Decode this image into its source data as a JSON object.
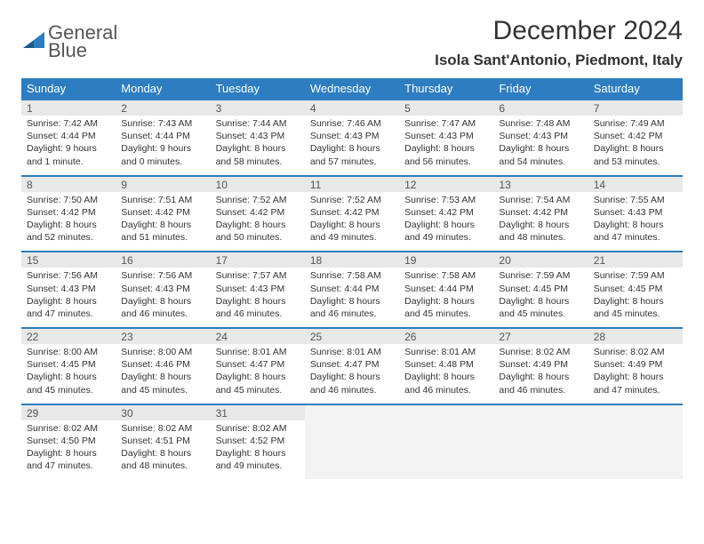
{
  "logo": {
    "line1": "General",
    "line2": "Blue"
  },
  "title": "December 2024",
  "location": "Isola Sant'Antonio, Piedmont, Italy",
  "colors": {
    "header_bg": "#2d7dc0",
    "header_text": "#ffffff",
    "daynum_bg": "#e8e8e8",
    "border": "#2d7dc0",
    "text": "#333333",
    "empty_bg": "#f3f3f3"
  },
  "daysOfWeek": [
    "Sunday",
    "Monday",
    "Tuesday",
    "Wednesday",
    "Thursday",
    "Friday",
    "Saturday"
  ],
  "weeks": [
    [
      {
        "n": "1",
        "sunrise": "Sunrise: 7:42 AM",
        "sunset": "Sunset: 4:44 PM",
        "daylight": "Daylight: 9 hours and 1 minute."
      },
      {
        "n": "2",
        "sunrise": "Sunrise: 7:43 AM",
        "sunset": "Sunset: 4:44 PM",
        "daylight": "Daylight: 9 hours and 0 minutes."
      },
      {
        "n": "3",
        "sunrise": "Sunrise: 7:44 AM",
        "sunset": "Sunset: 4:43 PM",
        "daylight": "Daylight: 8 hours and 58 minutes."
      },
      {
        "n": "4",
        "sunrise": "Sunrise: 7:46 AM",
        "sunset": "Sunset: 4:43 PM",
        "daylight": "Daylight: 8 hours and 57 minutes."
      },
      {
        "n": "5",
        "sunrise": "Sunrise: 7:47 AM",
        "sunset": "Sunset: 4:43 PM",
        "daylight": "Daylight: 8 hours and 56 minutes."
      },
      {
        "n": "6",
        "sunrise": "Sunrise: 7:48 AM",
        "sunset": "Sunset: 4:43 PM",
        "daylight": "Daylight: 8 hours and 54 minutes."
      },
      {
        "n": "7",
        "sunrise": "Sunrise: 7:49 AM",
        "sunset": "Sunset: 4:42 PM",
        "daylight": "Daylight: 8 hours and 53 minutes."
      }
    ],
    [
      {
        "n": "8",
        "sunrise": "Sunrise: 7:50 AM",
        "sunset": "Sunset: 4:42 PM",
        "daylight": "Daylight: 8 hours and 52 minutes."
      },
      {
        "n": "9",
        "sunrise": "Sunrise: 7:51 AM",
        "sunset": "Sunset: 4:42 PM",
        "daylight": "Daylight: 8 hours and 51 minutes."
      },
      {
        "n": "10",
        "sunrise": "Sunrise: 7:52 AM",
        "sunset": "Sunset: 4:42 PM",
        "daylight": "Daylight: 8 hours and 50 minutes."
      },
      {
        "n": "11",
        "sunrise": "Sunrise: 7:52 AM",
        "sunset": "Sunset: 4:42 PM",
        "daylight": "Daylight: 8 hours and 49 minutes."
      },
      {
        "n": "12",
        "sunrise": "Sunrise: 7:53 AM",
        "sunset": "Sunset: 4:42 PM",
        "daylight": "Daylight: 8 hours and 49 minutes."
      },
      {
        "n": "13",
        "sunrise": "Sunrise: 7:54 AM",
        "sunset": "Sunset: 4:42 PM",
        "daylight": "Daylight: 8 hours and 48 minutes."
      },
      {
        "n": "14",
        "sunrise": "Sunrise: 7:55 AM",
        "sunset": "Sunset: 4:43 PM",
        "daylight": "Daylight: 8 hours and 47 minutes."
      }
    ],
    [
      {
        "n": "15",
        "sunrise": "Sunrise: 7:56 AM",
        "sunset": "Sunset: 4:43 PM",
        "daylight": "Daylight: 8 hours and 47 minutes."
      },
      {
        "n": "16",
        "sunrise": "Sunrise: 7:56 AM",
        "sunset": "Sunset: 4:43 PM",
        "daylight": "Daylight: 8 hours and 46 minutes."
      },
      {
        "n": "17",
        "sunrise": "Sunrise: 7:57 AM",
        "sunset": "Sunset: 4:43 PM",
        "daylight": "Daylight: 8 hours and 46 minutes."
      },
      {
        "n": "18",
        "sunrise": "Sunrise: 7:58 AM",
        "sunset": "Sunset: 4:44 PM",
        "daylight": "Daylight: 8 hours and 46 minutes."
      },
      {
        "n": "19",
        "sunrise": "Sunrise: 7:58 AM",
        "sunset": "Sunset: 4:44 PM",
        "daylight": "Daylight: 8 hours and 45 minutes."
      },
      {
        "n": "20",
        "sunrise": "Sunrise: 7:59 AM",
        "sunset": "Sunset: 4:45 PM",
        "daylight": "Daylight: 8 hours and 45 minutes."
      },
      {
        "n": "21",
        "sunrise": "Sunrise: 7:59 AM",
        "sunset": "Sunset: 4:45 PM",
        "daylight": "Daylight: 8 hours and 45 minutes."
      }
    ],
    [
      {
        "n": "22",
        "sunrise": "Sunrise: 8:00 AM",
        "sunset": "Sunset: 4:45 PM",
        "daylight": "Daylight: 8 hours and 45 minutes."
      },
      {
        "n": "23",
        "sunrise": "Sunrise: 8:00 AM",
        "sunset": "Sunset: 4:46 PM",
        "daylight": "Daylight: 8 hours and 45 minutes."
      },
      {
        "n": "24",
        "sunrise": "Sunrise: 8:01 AM",
        "sunset": "Sunset: 4:47 PM",
        "daylight": "Daylight: 8 hours and 45 minutes."
      },
      {
        "n": "25",
        "sunrise": "Sunrise: 8:01 AM",
        "sunset": "Sunset: 4:47 PM",
        "daylight": "Daylight: 8 hours and 46 minutes."
      },
      {
        "n": "26",
        "sunrise": "Sunrise: 8:01 AM",
        "sunset": "Sunset: 4:48 PM",
        "daylight": "Daylight: 8 hours and 46 minutes."
      },
      {
        "n": "27",
        "sunrise": "Sunrise: 8:02 AM",
        "sunset": "Sunset: 4:49 PM",
        "daylight": "Daylight: 8 hours and 46 minutes."
      },
      {
        "n": "28",
        "sunrise": "Sunrise: 8:02 AM",
        "sunset": "Sunset: 4:49 PM",
        "daylight": "Daylight: 8 hours and 47 minutes."
      }
    ],
    [
      {
        "n": "29",
        "sunrise": "Sunrise: 8:02 AM",
        "sunset": "Sunset: 4:50 PM",
        "daylight": "Daylight: 8 hours and 47 minutes."
      },
      {
        "n": "30",
        "sunrise": "Sunrise: 8:02 AM",
        "sunset": "Sunset: 4:51 PM",
        "daylight": "Daylight: 8 hours and 48 minutes."
      },
      {
        "n": "31",
        "sunrise": "Sunrise: 8:02 AM",
        "sunset": "Sunset: 4:52 PM",
        "daylight": "Daylight: 8 hours and 49 minutes."
      },
      null,
      null,
      null,
      null
    ]
  ]
}
